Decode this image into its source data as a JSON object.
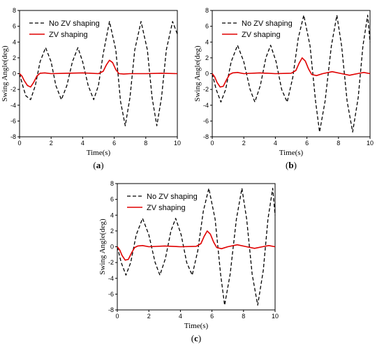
{
  "figure": {
    "panels": [
      {
        "caption_letter": "a",
        "caption_open": "(",
        "caption_close": ")"
      },
      {
        "caption_letter": "b",
        "caption_open": "(",
        "caption_close": ")"
      },
      {
        "caption_letter": "c",
        "caption_open": "(",
        "caption_close": ")"
      }
    ]
  },
  "colors": {
    "no_zv": "#000000",
    "zv": "#e00000",
    "axis": "#000000"
  },
  "chart_data": [
    {
      "type": "line",
      "xlabel": "Time(s)",
      "ylabel": "Swing Angle(deg)",
      "xlim": [
        0,
        10
      ],
      "ylim": [
        -8,
        8
      ],
      "xticks": [
        0,
        2,
        4,
        6,
        8,
        10
      ],
      "yticks": [
        -8,
        -6,
        -4,
        -2,
        0,
        2,
        4,
        6,
        8
      ],
      "grid": false,
      "legend_position": "top-left",
      "series": [
        {
          "name": "No ZV shaping",
          "style": "dashed",
          "color": "#000000",
          "x": [
            0,
            0.2,
            0.4,
            0.7,
            1.0,
            1.3,
            1.65,
            2.0,
            2.3,
            2.65,
            3.0,
            3.35,
            3.7,
            4.0,
            4.35,
            4.7,
            5.0,
            5.3,
            5.7,
            6.1,
            6.4,
            6.7,
            7.0,
            7.3,
            7.7,
            8.1,
            8.4,
            8.7,
            9.0,
            9.3,
            9.7,
            10.0
          ],
          "y": [
            0,
            -1.5,
            -2.8,
            -3.3,
            -1.5,
            1.5,
            3.3,
            1.5,
            -1.5,
            -3.3,
            -1.5,
            1.5,
            3.3,
            1.5,
            -1.5,
            -3.3,
            -1.5,
            2.5,
            6.6,
            3.0,
            -3.5,
            -6.6,
            -3.0,
            3.0,
            6.6,
            3.0,
            -3.0,
            -6.6,
            -3.0,
            3.0,
            6.6,
            5.0
          ]
        },
        {
          "name": "ZV shaping",
          "style": "solid",
          "color": "#e00000",
          "x": [
            0,
            0.15,
            0.3,
            0.5,
            0.7,
            0.9,
            1.1,
            1.3,
            1.6,
            2.0,
            3.0,
            4.0,
            5.0,
            5.3,
            5.5,
            5.7,
            5.9,
            6.1,
            6.3,
            6.6,
            7.0,
            8.0,
            9.0,
            10.0
          ],
          "y": [
            0,
            -0.3,
            -0.9,
            -1.5,
            -1.7,
            -1.1,
            -0.3,
            0.05,
            0.1,
            0.0,
            0.05,
            0.1,
            0.0,
            0.3,
            1.1,
            1.7,
            1.4,
            0.5,
            0.0,
            -0.05,
            0.0,
            0.0,
            0.05,
            0.0
          ]
        }
      ]
    },
    {
      "type": "line",
      "xlabel": "Time(s)",
      "ylabel": "Swing Angle(deg)",
      "xlim": [
        0,
        10
      ],
      "ylim": [
        -8,
        8
      ],
      "xticks": [
        0,
        2,
        4,
        6,
        8,
        10
      ],
      "yticks": [
        -8,
        -6,
        -4,
        -2,
        0,
        2,
        4,
        6,
        8
      ],
      "grid": false,
      "legend_position": "top-left",
      "series": [
        {
          "name": "No ZV shaping",
          "style": "dashed",
          "color": "#000000",
          "x": [
            0,
            0.25,
            0.55,
            0.85,
            1.2,
            1.6,
            2.0,
            2.4,
            2.7,
            3.05,
            3.4,
            3.7,
            4.05,
            4.4,
            4.75,
            5.1,
            5.45,
            5.8,
            6.2,
            6.55,
            6.8,
            7.15,
            7.55,
            7.9,
            8.2,
            8.55,
            8.9,
            9.25,
            9.55,
            9.85,
            10.0
          ],
          "y": [
            0,
            -2.0,
            -3.6,
            -2.0,
            1.5,
            3.6,
            1.5,
            -2.0,
            -3.6,
            -1.5,
            2.0,
            3.6,
            1.5,
            -2.0,
            -3.6,
            -0.5,
            4.5,
            7.4,
            3.5,
            -3.5,
            -7.4,
            -3.5,
            3.5,
            7.4,
            3.5,
            -3.5,
            -7.4,
            -3.0,
            3.5,
            7.4,
            4.0
          ]
        },
        {
          "name": "ZV shaping",
          "style": "solid",
          "color": "#e00000",
          "x": [
            0,
            0.15,
            0.3,
            0.5,
            0.7,
            0.9,
            1.1,
            1.3,
            1.6,
            2.0,
            3.0,
            4.0,
            5.0,
            5.3,
            5.5,
            5.7,
            5.9,
            6.1,
            6.3,
            6.6,
            7.0,
            7.6,
            8.2,
            8.7,
            9.2,
            9.6,
            10.0
          ],
          "y": [
            0,
            -0.4,
            -1.1,
            -1.7,
            -1.6,
            -0.8,
            -0.1,
            0.1,
            0.15,
            0.0,
            0.1,
            0.0,
            0.05,
            0.4,
            1.3,
            2.0,
            1.6,
            0.6,
            -0.1,
            -0.25,
            0.0,
            0.25,
            0.0,
            -0.2,
            0.0,
            0.15,
            0.0
          ]
        }
      ]
    },
    {
      "type": "line",
      "xlabel": "Time(s)",
      "ylabel": "Swing Angle(deg)",
      "xlim": [
        0,
        10
      ],
      "ylim": [
        -8,
        8
      ],
      "xticks": [
        0,
        2,
        4,
        6,
        8,
        10
      ],
      "yticks": [
        -8,
        -6,
        -4,
        -2,
        0,
        2,
        4,
        6,
        8
      ],
      "grid": false,
      "legend_position": "top-left",
      "series": [
        {
          "name": "No ZV shaping",
          "style": "dashed",
          "color": "#000000",
          "x": [
            0,
            0.25,
            0.55,
            0.85,
            1.2,
            1.6,
            2.0,
            2.4,
            2.7,
            3.05,
            3.4,
            3.7,
            4.05,
            4.4,
            4.75,
            5.1,
            5.45,
            5.8,
            6.2,
            6.55,
            6.8,
            7.15,
            7.55,
            7.9,
            8.2,
            8.55,
            8.9,
            9.25,
            9.55,
            9.85,
            10.0
          ],
          "y": [
            0,
            -2.0,
            -3.6,
            -2.0,
            1.5,
            3.6,
            1.5,
            -2.0,
            -3.6,
            -1.5,
            2.0,
            3.6,
            1.5,
            -2.0,
            -3.6,
            -0.5,
            4.5,
            7.4,
            3.5,
            -3.5,
            -7.4,
            -3.5,
            3.5,
            7.4,
            3.5,
            -3.5,
            -7.4,
            -3.0,
            3.5,
            7.4,
            4.0
          ]
        },
        {
          "name": "ZV shaping",
          "style": "solid",
          "color": "#e00000",
          "x": [
            0,
            0.15,
            0.3,
            0.5,
            0.7,
            0.9,
            1.1,
            1.3,
            1.6,
            2.0,
            3.0,
            4.0,
            5.0,
            5.3,
            5.5,
            5.7,
            5.9,
            6.1,
            6.3,
            6.6,
            7.0,
            7.6,
            8.2,
            8.7,
            9.2,
            9.6,
            10.0
          ],
          "y": [
            0,
            -0.4,
            -1.1,
            -1.7,
            -1.6,
            -0.8,
            -0.1,
            0.1,
            0.15,
            0.0,
            0.1,
            0.0,
            0.05,
            0.4,
            1.3,
            2.0,
            1.6,
            0.6,
            -0.1,
            -0.25,
            0.0,
            0.25,
            0.0,
            -0.2,
            0.0,
            0.15,
            0.0
          ]
        }
      ]
    }
  ]
}
